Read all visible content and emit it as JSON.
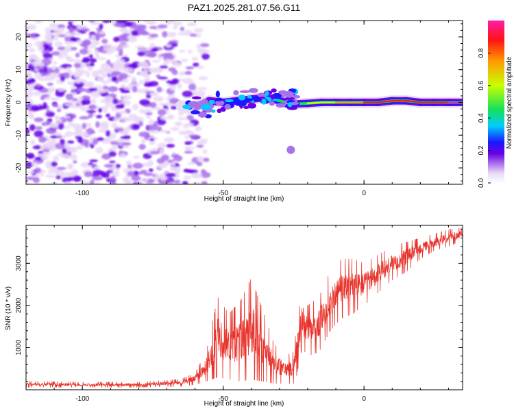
{
  "figure": {
    "title": "PAZ1.2025.281.07.56.G11"
  },
  "colors": {
    "snr_line": "#e8322a",
    "ridge": "#e2211c",
    "frame": "#000000",
    "colorscale": [
      "#ffffff",
      "#ead8f7",
      "#a970ec",
      "#6a00e6",
      "#1a18ff",
      "#00ccff",
      "#14e05a",
      "#c8ff00",
      "#ff9a00",
      "#ff1414",
      "#ff1ca8"
    ]
  },
  "chart_data": [
    {
      "id": "spectrogram",
      "type": "heatmap",
      "title": "PAZ1.2025.281.07.56.G11",
      "xlabel": "Height of straight line (km)",
      "ylabel": "Frequency (Hz)",
      "xlim": [
        -120,
        35
      ],
      "ylim": [
        -25,
        25
      ],
      "xticks": [
        -100,
        -50,
        0
      ],
      "yticks": [
        -20,
        -10,
        0,
        10,
        20
      ],
      "noise_region_x": [
        -120,
        -60
      ],
      "signal_ridge": [
        {
          "x": -65,
          "y": -1.0,
          "amp": 0.05
        },
        {
          "x": -60,
          "y": -1.5,
          "amp": 0.12
        },
        {
          "x": -55,
          "y": 0.5,
          "amp": 0.2
        },
        {
          "x": -50,
          "y": 0.0,
          "amp": 0.25
        },
        {
          "x": -45,
          "y": 0.5,
          "amp": 0.28
        },
        {
          "x": -40,
          "y": 1.0,
          "amp": 0.3
        },
        {
          "x": -35,
          "y": 1.5,
          "amp": 0.35
        },
        {
          "x": -30,
          "y": 0.5,
          "amp": 0.45
        },
        {
          "x": -25,
          "y": -0.5,
          "amp": 0.5
        },
        {
          "x": -20,
          "y": -0.3,
          "amp": 0.6
        },
        {
          "x": -15,
          "y": 0.0,
          "amp": 0.7
        },
        {
          "x": -10,
          "y": 0.0,
          "amp": 0.75
        },
        {
          "x": -5,
          "y": 0.0,
          "amp": 0.85
        },
        {
          "x": 0,
          "y": 0.0,
          "amp": 0.9
        },
        {
          "x": 5,
          "y": 0.0,
          "amp": 0.92
        },
        {
          "x": 10,
          "y": 0.5,
          "amp": 0.95
        },
        {
          "x": 15,
          "y": 0.5,
          "amp": 0.95
        },
        {
          "x": 20,
          "y": 0.0,
          "amp": 0.97
        },
        {
          "x": 25,
          "y": 0.0,
          "amp": 0.98
        },
        {
          "x": 30,
          "y": 0.0,
          "amp": 1.0
        },
        {
          "x": 35,
          "y": 0.0,
          "amp": 1.0
        }
      ],
      "isolated_blob": {
        "x": -26,
        "y": -14.5,
        "amp": 0.15
      },
      "colorbar": {
        "label": "Normalized spectral amplitude",
        "range": [
          0.0,
          1.0
        ],
        "ticks": [
          0.0,
          0.2,
          0.4,
          0.6,
          0.8
        ]
      }
    },
    {
      "id": "snr",
      "type": "line",
      "xlabel": "Height of straight line (km)",
      "ylabel": "SNR (10 * v/v)",
      "xlim": [
        -120,
        35
      ],
      "ylim": [
        0,
        3900
      ],
      "xticks": [
        -100,
        -50,
        0
      ],
      "yticks": [
        1000,
        2000,
        3000
      ],
      "envelope": [
        {
          "x": -120,
          "low": 60,
          "high": 200
        },
        {
          "x": -100,
          "low": 60,
          "high": 180
        },
        {
          "x": -80,
          "low": 60,
          "high": 180
        },
        {
          "x": -65,
          "low": 80,
          "high": 250
        },
        {
          "x": -60,
          "low": 120,
          "high": 400
        },
        {
          "x": -56,
          "low": 200,
          "high": 900
        },
        {
          "x": -52,
          "low": 300,
          "high": 2200
        },
        {
          "x": -48,
          "low": 250,
          "high": 1800
        },
        {
          "x": -44,
          "low": 200,
          "high": 2100
        },
        {
          "x": -40,
          "low": 250,
          "high": 2650
        },
        {
          "x": -36,
          "low": 200,
          "high": 1900
        },
        {
          "x": -32,
          "low": 150,
          "high": 1100
        },
        {
          "x": -28,
          "low": 150,
          "high": 800
        },
        {
          "x": -25,
          "low": 150,
          "high": 900
        },
        {
          "x": -24,
          "low": 300,
          "high": 1500
        },
        {
          "x": -22,
          "low": 1000,
          "high": 2400
        },
        {
          "x": -20,
          "low": 800,
          "high": 2000
        },
        {
          "x": -16,
          "low": 900,
          "high": 2200
        },
        {
          "x": -12,
          "low": 1400,
          "high": 2800
        },
        {
          "x": -8,
          "low": 1700,
          "high": 3100
        },
        {
          "x": -4,
          "low": 1800,
          "high": 3100
        },
        {
          "x": 0,
          "low": 2000,
          "high": 3000
        },
        {
          "x": 5,
          "low": 2300,
          "high": 3200
        },
        {
          "x": 10,
          "low": 2600,
          "high": 3400
        },
        {
          "x": 15,
          "low": 2800,
          "high": 3500
        },
        {
          "x": 20,
          "low": 3100,
          "high": 3600
        },
        {
          "x": 25,
          "low": 3300,
          "high": 3700
        },
        {
          "x": 30,
          "low": 3400,
          "high": 3800
        },
        {
          "x": 35,
          "low": 3550,
          "high": 3850
        }
      ]
    }
  ]
}
